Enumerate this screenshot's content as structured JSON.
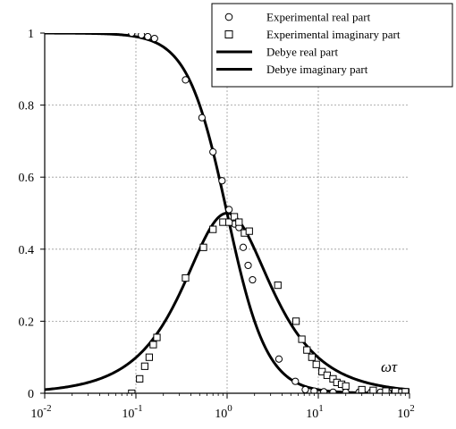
{
  "chart_data": {
    "type": "scatter",
    "title": "",
    "xlabel": "ωτ",
    "ylabel": "",
    "xscale": "log",
    "xlim": [
      0.01,
      100
    ],
    "ylim": [
      0,
      1
    ],
    "grid": true,
    "legend_position": "top-right",
    "x_ticks": [
      {
        "value": 0.01,
        "base": "10",
        "exp": "-2"
      },
      {
        "value": 0.1,
        "base": "10",
        "exp": "-1"
      },
      {
        "value": 1,
        "base": "10",
        "exp": "0"
      },
      {
        "value": 10,
        "base": "10",
        "exp": "1"
      },
      {
        "value": 100,
        "base": "10",
        "exp": "2"
      }
    ],
    "y_ticks": [
      {
        "value": 0,
        "label": "0"
      },
      {
        "value": 0.2,
        "label": "0.2"
      },
      {
        "value": 0.4,
        "label": "0.4"
      },
      {
        "value": 0.6,
        "label": "0.6"
      },
      {
        "value": 0.8,
        "label": "0.8"
      },
      {
        "value": 1,
        "label": "1"
      }
    ],
    "series": [
      {
        "name": "Experimental real part",
        "kind": "scatter",
        "marker": "circle",
        "points": [
          [
            0.09,
            1.0
          ],
          [
            0.115,
            0.995
          ],
          [
            0.135,
            0.99
          ],
          [
            0.16,
            0.985
          ],
          [
            0.35,
            0.87
          ],
          [
            0.53,
            0.765
          ],
          [
            0.7,
            0.67
          ],
          [
            0.88,
            0.59
          ],
          [
            1.05,
            0.51
          ],
          [
            1.2,
            0.47
          ],
          [
            1.35,
            0.46
          ],
          [
            1.5,
            0.405
          ],
          [
            1.7,
            0.355
          ],
          [
            1.9,
            0.315
          ],
          [
            3.7,
            0.095
          ],
          [
            5.6,
            0.033
          ],
          [
            7.2,
            0.01
          ],
          [
            9.0,
            0.006
          ],
          [
            11.5,
            0.004
          ],
          [
            14.5,
            0.003
          ],
          [
            20.0,
            0.003
          ],
          [
            28.0,
            0.003
          ],
          [
            38.0,
            0.003
          ],
          [
            48.0,
            0.003
          ],
          [
            58.0,
            0.003
          ],
          [
            68.0,
            0.003
          ],
          [
            80.0,
            0.003
          ],
          [
            92.0,
            0.003
          ]
        ]
      },
      {
        "name": "Experimental imaginary part",
        "kind": "scatter",
        "marker": "square",
        "points": [
          [
            0.09,
            0.0
          ],
          [
            0.11,
            0.04
          ],
          [
            0.125,
            0.075
          ],
          [
            0.14,
            0.1
          ],
          [
            0.155,
            0.135
          ],
          [
            0.17,
            0.155
          ],
          [
            0.35,
            0.32
          ],
          [
            0.55,
            0.405
          ],
          [
            0.7,
            0.455
          ],
          [
            0.9,
            0.475
          ],
          [
            1.05,
            0.475
          ],
          [
            1.2,
            0.49
          ],
          [
            1.35,
            0.475
          ],
          [
            1.55,
            0.445
          ],
          [
            1.75,
            0.45
          ],
          [
            3.6,
            0.3
          ],
          [
            5.7,
            0.2
          ],
          [
            6.6,
            0.15
          ],
          [
            7.5,
            0.12
          ],
          [
            8.5,
            0.1
          ],
          [
            9.5,
            0.08
          ],
          [
            11.0,
            0.06
          ],
          [
            12.5,
            0.05
          ],
          [
            14.5,
            0.04
          ],
          [
            16.0,
            0.03
          ],
          [
            18.0,
            0.025
          ],
          [
            20.0,
            0.02
          ],
          [
            30.0,
            0.01
          ],
          [
            40.0,
            0.008
          ],
          [
            55.0,
            0.006
          ],
          [
            70.0,
            0.005
          ],
          [
            90.0,
            0.004
          ]
        ]
      },
      {
        "name": "Debye real part",
        "kind": "line",
        "formula": "1/(1+x^2)"
      },
      {
        "name": "Debye imaginary part",
        "kind": "line",
        "formula": "x/(1+x^2)"
      }
    ]
  }
}
